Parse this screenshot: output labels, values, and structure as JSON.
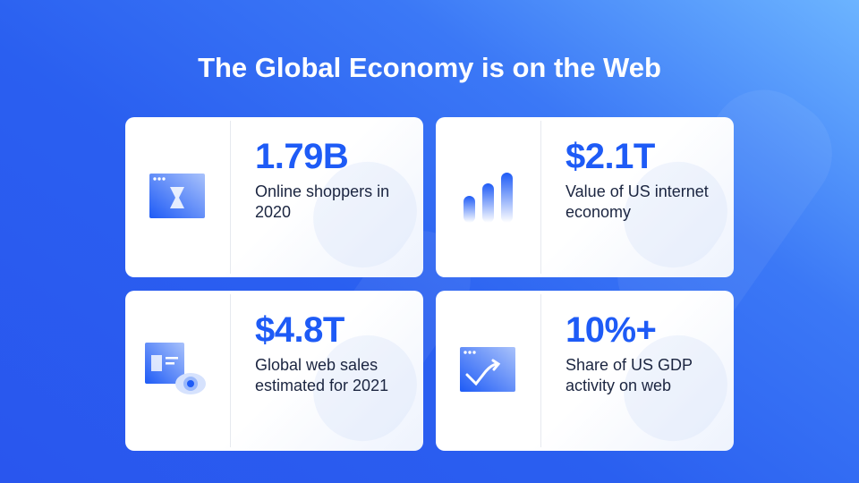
{
  "title": "The Global Economy is on the Web",
  "colors": {
    "accent": "#1e5bf6",
    "background": "#2a5ff0",
    "text": "#1b2540"
  },
  "stats": [
    {
      "value": "1.79B",
      "label": "Online shoppers in 2020",
      "icon": "browser-hourglass-icon"
    },
    {
      "value": "$2.1T",
      "label": "Value of US internet economy",
      "icon": "bar-growth-icon"
    },
    {
      "value": "$4.8T",
      "label": "Global web sales estimated for 2021",
      "icon": "browser-eye-icon"
    },
    {
      "value": "10%+",
      "label": "Share of US GDP activity on web",
      "icon": "browser-trend-arrow-icon"
    }
  ]
}
